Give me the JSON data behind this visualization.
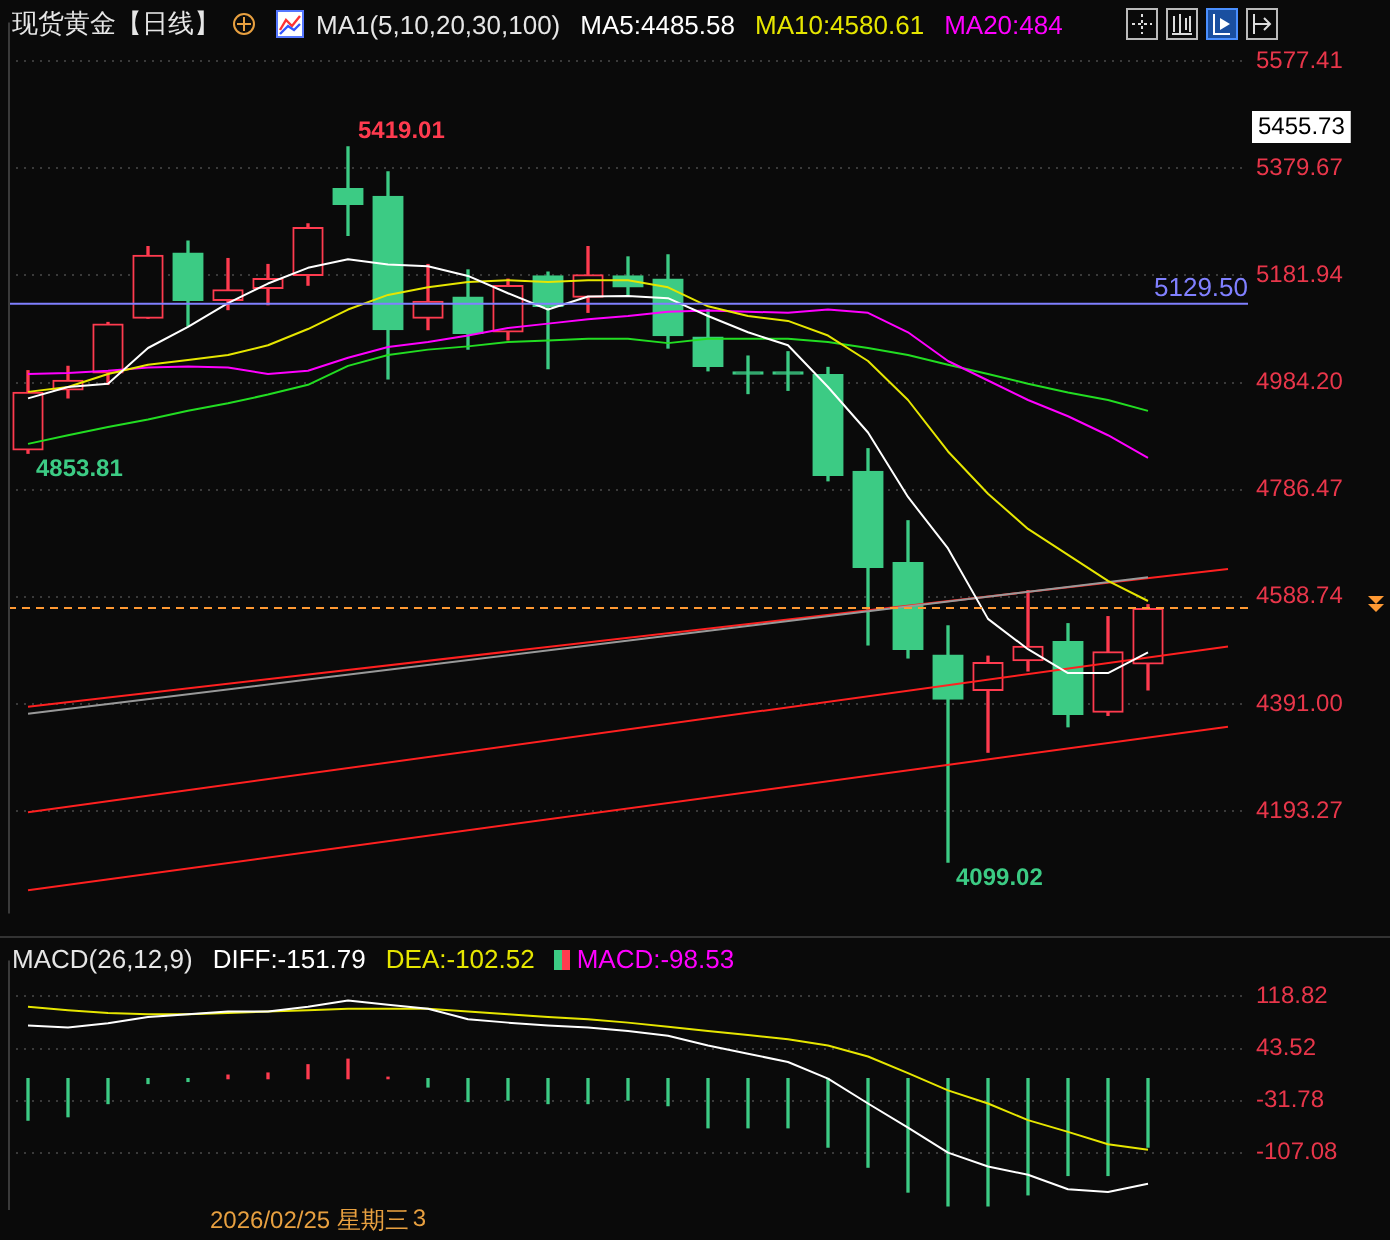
{
  "chart_data": [
    {
      "type": "candlestick",
      "title": "现货黄金【日线】",
      "legend_title": "MA1(5,10,20,30,100)",
      "legend": "top",
      "grid": "y",
      "tick_labels": "y",
      "categories": [
        null,
        null,
        null,
        null,
        null,
        null,
        null,
        null,
        null,
        null,
        null,
        null,
        null,
        null,
        null,
        null,
        null,
        null,
        null,
        null,
        null,
        null,
        null,
        null,
        null,
        null,
        null,
        null,
        null,
        null,
        null
      ],
      "ohlc": [
        [
          4860,
          5006,
          4853.81,
          4966
        ],
        [
          4971,
          5014,
          4956,
          4988
        ],
        [
          5002,
          5095,
          4981,
          5092
        ],
        [
          5103,
          5235,
          5103,
          5219
        ],
        [
          5223,
          5245,
          5089,
          5136
        ],
        [
          5136,
          5213,
          5119,
          5155
        ],
        [
          5158,
          5202,
          5128,
          5176
        ],
        [
          5182,
          5277,
          5164,
          5270
        ],
        [
          5342,
          5419.01,
          5256,
          5313
        ],
        [
          5328,
          5373,
          4991,
          5082
        ],
        [
          5103,
          5202,
          5082,
          5134
        ],
        [
          5142,
          5192,
          5046,
          5075
        ],
        [
          5078,
          5175,
          5063,
          5163
        ],
        [
          5181,
          5188,
          5010,
          5125
        ],
        [
          5142,
          5235,
          5114,
          5183
        ],
        [
          5181,
          5216,
          5146,
          5161
        ],
        [
          5175,
          5220,
          5048,
          5071
        ],
        [
          5068,
          5119,
          5006,
          5014
        ],
        [
          5000,
          5033,
          4964,
          5000
        ],
        [
          5000,
          5041,
          4970,
          5000
        ],
        [
          4999,
          5012,
          4803,
          4813
        ],
        [
          4820,
          4862,
          4500,
          4643
        ],
        [
          4652,
          4729,
          4476,
          4492
        ],
        [
          4481,
          4535,
          4099.02,
          4400
        ],
        [
          4416,
          4479,
          4302,
          4467
        ],
        [
          4471,
          4600,
          4452,
          4497
        ],
        [
          4506,
          4539,
          4349,
          4372
        ],
        [
          4376,
          4552,
          4370,
          4487
        ],
        [
          4465,
          4574,
          4417,
          4567
        ],
        null,
        null
      ],
      "colors": [
        "#ff3b4f",
        "#ff3b4f",
        "#ff3b4f",
        "#ff3b4f",
        "#3ccb84",
        "#ff3b4f",
        "#ff3b4f",
        "#ff3b4f",
        "#3ccb84",
        "#3ccb84",
        "#ff3b4f",
        "#3ccb84",
        "#ff3b4f",
        "#3ccb84",
        "#ff3b4f",
        "#3ccb84",
        "#3ccb84",
        "#3ccb84",
        "#3ccb84",
        "#3ccb84",
        "#3ccb84",
        "#3ccb84",
        "#3ccb84",
        "#3ccb84",
        "#ff3b4f",
        "#ff3b4f",
        "#3ccb84",
        "#ff3b4f",
        "#ff3b4f",
        null,
        null
      ],
      "series": [
        {
          "name": "MA5:4485.58",
          "type": "line",
          "color": "#ffffff",
          "values": [
            4955,
            4976,
            4982,
            5048,
            5087,
            5131,
            5167,
            5196,
            5212,
            5202,
            5199,
            5181,
            5149,
            5119,
            5143,
            5144,
            5140,
            5107,
            5077,
            5053,
            4976,
            4892,
            4773,
            4678,
            4548,
            4492,
            4448,
            4448,
            4486,
            null,
            null
          ]
        },
        {
          "name": "MA10:4580.61",
          "type": "line",
          "color": "#e6e600",
          "values": [
            4967,
            4976,
            5000,
            5017,
            5026,
            5035,
            5053,
            5083,
            5119,
            5146,
            5160,
            5170,
            5173,
            5170,
            5173,
            5173,
            5160,
            5125,
            5107,
            5098,
            5071,
            5024,
            4952,
            4857,
            4779,
            4714,
            4666,
            4618,
            4581,
            null,
            null
          ]
        },
        {
          "name": "MA20:484",
          "type": "line",
          "color": "#ff00ff",
          "values": [
            5000,
            5002,
            5006,
            5012,
            5014,
            5012,
            5000,
            5006,
            5030,
            5050,
            5059,
            5071,
            5085,
            5093,
            5101,
            5107,
            5115,
            5117,
            5115,
            5113,
            5119,
            5113,
            5077,
            5024,
            4988,
            4952,
            4922,
            4887,
            4845,
            null,
            null
          ]
        },
        {
          "type": "line",
          "color": "#22dd22",
          "values": [
            4871,
            4887,
            4902,
            4916,
            4932,
            4946,
            4962,
            4980,
            5015,
            5035,
            5045,
            5051,
            5059,
            5062,
            5065,
            5065,
            5057,
            5065,
            5065,
            5065,
            5059,
            5048,
            5035,
            5017,
            5000,
            4982,
            4966,
            4952,
            4932,
            null,
            null
          ]
        },
        {
          "type": "line",
          "color": "#999999",
          "values": [
            4373,
            null,
            null,
            null,
            null,
            null,
            null,
            4436,
            null,
            null,
            null,
            null,
            null,
            null,
            4499,
            null,
            null,
            null,
            null,
            null,
            null,
            4562,
            null,
            null,
            null,
            null,
            null,
            null,
            4625,
            null,
            null
          ]
        },
        {
          "type": "line",
          "color": "#ff2020",
          "values": [
            4386,
            null,
            null,
            null,
            null,
            null,
            null,
            null,
            null,
            null,
            null,
            null,
            null,
            null,
            null,
            null,
            null,
            null,
            null,
            null,
            null,
            null,
            null,
            null,
            null,
            null,
            null,
            null,
            null,
            null,
            4640
          ]
        },
        {
          "type": "line",
          "color": "#ff2020",
          "values": [
            4191,
            null,
            null,
            null,
            null,
            null,
            null,
            null,
            null,
            null,
            null,
            null,
            null,
            null,
            null,
            null,
            null,
            null,
            null,
            null,
            null,
            null,
            null,
            null,
            null,
            null,
            null,
            null,
            null,
            null,
            4497
          ]
        },
        {
          "type": "line",
          "color": "#ff2020",
          "values": [
            4047,
            null,
            null,
            null,
            null,
            null,
            null,
            null,
            null,
            null,
            null,
            null,
            null,
            null,
            null,
            null,
            null,
            null,
            null,
            null,
            null,
            null,
            null,
            null,
            null,
            null,
            null,
            null,
            null,
            null,
            4349
          ]
        }
      ],
      "ylim": [
        4004,
        5649
      ],
      "yticks": [
        {
          "value": 4193.27,
          "label": "4193.27"
        },
        {
          "value": 4391,
          "label": "4391.00"
        },
        {
          "value": 4588.74,
          "label": "4588.74"
        },
        {
          "value": 4786.47,
          "label": "4786.47"
        },
        {
          "value": 4984.2,
          "label": "4984.20"
        },
        {
          "value": 5181.94,
          "label": "5181.94"
        },
        {
          "value": 5379.67,
          "label": "5379.67"
        },
        {
          "value": 5577.41,
          "label": "5577.41"
        }
      ],
      "ref_lines": [
        {
          "axis": "y",
          "value": 5129.5,
          "label": "5129.50",
          "color": "#8080ff"
        },
        {
          "axis": "y",
          "value": 4568,
          "color": "#ff9933",
          "line_style": "dashed"
        }
      ],
      "annotations": [
        "5419.01",
        "4853.81",
        "4099.02",
        "5455.73"
      ]
    },
    {
      "type": "bar",
      "legend_title": "MACD(26,12,9)",
      "legend": "top",
      "grid": "y",
      "tick_labels": "y",
      "categories": [
        null,
        null,
        null,
        null,
        null,
        null,
        null,
        null,
        null,
        null,
        null,
        null,
        null,
        null,
        null,
        null,
        null,
        null,
        null,
        null,
        null,
        null,
        null,
        null,
        null,
        null,
        null,
        null,
        null,
        null,
        null
      ],
      "series": [
        {
          "name": "DIFF:-151.79",
          "type": "line",
          "color": "#ffffff",
          "values": [
            77,
            74,
            80,
            89,
            93,
            97,
            97,
            104,
            113,
            107,
            101,
            86,
            81,
            77,
            74,
            69,
            62,
            48,
            36,
            24,
            0,
            -36,
            -71,
            -107,
            -127,
            -139,
            -160,
            -164,
            -152,
            null,
            null
          ]
        },
        {
          "name": "DEA:-102.52",
          "type": "line",
          "color": "#e6e600",
          "values": [
            104,
            99,
            95,
            93,
            93,
            95,
            97,
            99,
            101,
            101,
            101,
            97,
            93,
            89,
            86,
            81,
            75,
            69,
            63,
            57,
            48,
            32,
            8,
            -17,
            -36,
            -60,
            -77,
            -95,
            -103,
            null,
            null
          ]
        },
        {
          "name": "MACD:-98.53",
          "type": "bar",
          "color": "#ff00ff",
          "colors": [
            "#3ccb84",
            "#3ccb84",
            "#3ccb84",
            "#3ccb84",
            "#3ccb84",
            "#ff3b4f",
            "#ff3b4f",
            "#ff3b4f",
            "#ff3b4f",
            "#ff3b4f",
            "#3ccb84",
            "#3ccb84",
            "#3ccb84",
            "#3ccb84",
            "#3ccb84",
            "#3ccb84",
            "#3ccb84",
            "#3ccb84",
            "#3ccb84",
            "#3ccb84",
            "#3ccb84",
            "#3ccb84",
            "#3ccb84",
            "#3ccb84",
            "#3ccb84",
            "#3ccb84",
            "#3ccb84",
            "#3ccb84",
            "#3ccb84",
            null,
            null
          ],
          "values": [
            -60,
            -55,
            -36,
            -7,
            -4,
            5,
            8,
            20,
            28,
            2,
            -12,
            -33,
            -31,
            -36,
            -36,
            -31,
            -39,
            -71,
            -71,
            -71,
            -99,
            -128,
            -164,
            -184,
            -184,
            -168,
            -140,
            -140,
            -99,
            null,
            null
          ]
        }
      ],
      "ylim": [
        -190,
        171
      ],
      "yticks": [
        -107.08,
        -31.78,
        43.52,
        118.82
      ],
      "annotations": [
        "2026/02/25 星期三",
        "3"
      ]
    }
  ]
}
